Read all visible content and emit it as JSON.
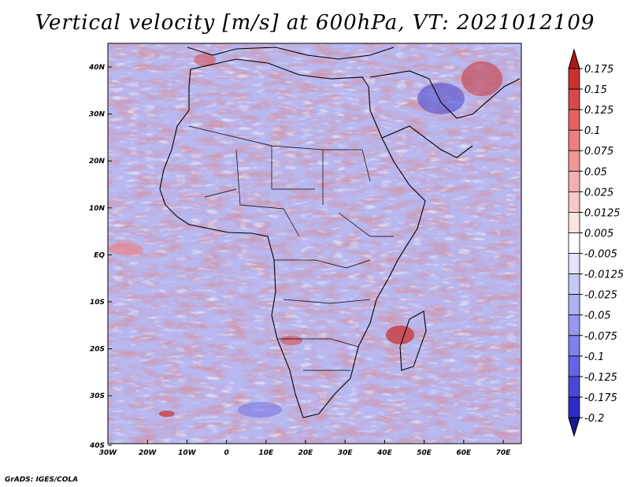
{
  "title": "Vertical velocity [m/s] at 600hPa, VT: 2021012109",
  "credit": "GrADS: IGES/COLA",
  "lat_labels": [
    "40N",
    "30N",
    "20N",
    "10N",
    "EQ",
    "10S",
    "20S",
    "30S",
    "40S"
  ],
  "lon_labels": [
    "30W",
    "20W",
    "10W",
    "0",
    "10E",
    "20E",
    "30E",
    "40E",
    "50E",
    "60E",
    "70E"
  ],
  "colorbar": {
    "levels": [
      "0.175",
      "0.15",
      "0.125",
      "0.1",
      "0.075",
      "0.05",
      "0.025",
      "0.0125",
      "0.005",
      "-0.005",
      "-0.0125",
      "-0.025",
      "-0.05",
      "-0.075",
      "-0.1",
      "-0.125",
      "-0.175",
      "-0.2"
    ],
    "colors": [
      "#b01818",
      "#c83232",
      "#d84848",
      "#e46464",
      "#ec8080",
      "#f09898",
      "#f4b0b0",
      "#f8c8c8",
      "#fce4e4",
      "#ffffff",
      "#e4e4fc",
      "#c8c8f8",
      "#b0b0f4",
      "#9898f0",
      "#8080ec",
      "#6464e4",
      "#4848d8",
      "#2c2cc8",
      "#181890"
    ]
  }
}
